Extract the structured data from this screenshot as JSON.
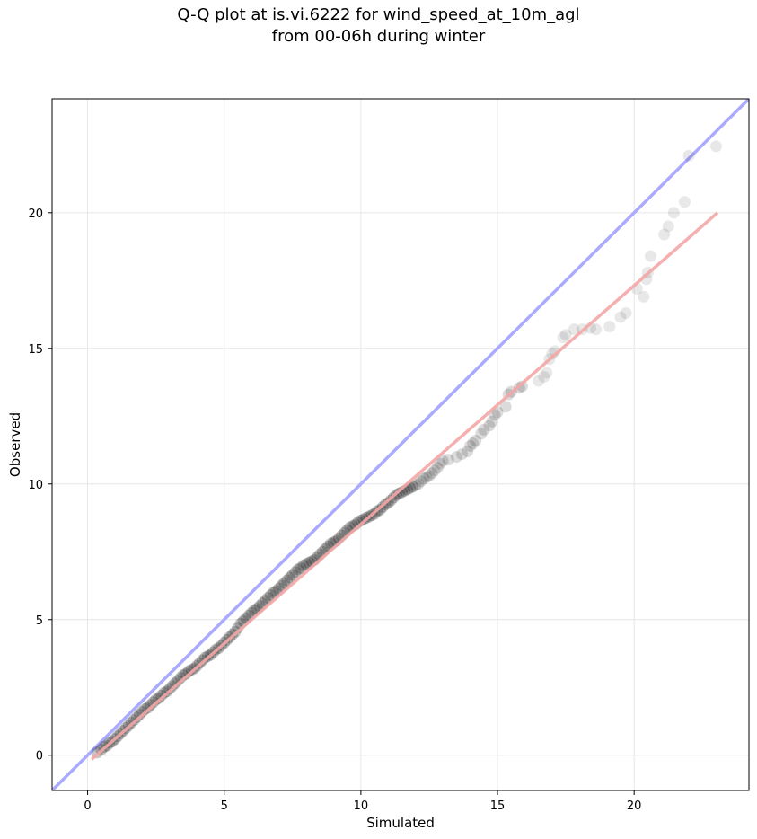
{
  "chart_data": {
    "type": "scatter",
    "title_lines": [
      "Q-Q plot at is.vi.6222 for wind_speed_at_10m_agl",
      "from 00-06h during winter"
    ],
    "xlabel": "Simulated",
    "ylabel": "Observed",
    "xlim": [
      -1.3,
      24.2
    ],
    "ylim": [
      -1.3,
      24.2
    ],
    "xticks": [
      0,
      5,
      10,
      15,
      20
    ],
    "yticks": [
      0,
      5,
      10,
      15,
      20
    ],
    "grid": true,
    "identity_line": {
      "color": "#aaaaff",
      "from": [
        -1.3,
        -1.3
      ],
      "to": [
        24.2,
        24.2
      ]
    },
    "fit_line": {
      "color": "#f4a6a6",
      "from": [
        0.15,
        -0.15
      ],
      "to": [
        23.05,
        20.0
      ]
    },
    "point_color": "#000000",
    "points": [
      [
        0.35,
        0.1
      ],
      [
        0.5,
        0.2
      ],
      [
        0.6,
        0.3
      ],
      [
        0.7,
        0.35
      ],
      [
        0.8,
        0.45
      ],
      [
        0.9,
        0.5
      ],
      [
        1.0,
        0.6
      ],
      [
        1.1,
        0.7
      ],
      [
        1.2,
        0.8
      ],
      [
        1.3,
        0.9
      ],
      [
        1.4,
        1.0
      ],
      [
        1.5,
        1.1
      ],
      [
        1.6,
        1.2
      ],
      [
        1.7,
        1.3
      ],
      [
        1.8,
        1.4
      ],
      [
        1.9,
        1.5
      ],
      [
        2.0,
        1.6
      ],
      [
        2.1,
        1.7
      ],
      [
        2.2,
        1.75
      ],
      [
        2.3,
        1.85
      ],
      [
        2.4,
        1.95
      ],
      [
        2.5,
        2.05
      ],
      [
        2.6,
        2.1
      ],
      [
        2.7,
        2.2
      ],
      [
        2.8,
        2.3
      ],
      [
        2.9,
        2.35
      ],
      [
        3.0,
        2.45
      ],
      [
        3.1,
        2.55
      ],
      [
        3.2,
        2.65
      ],
      [
        3.3,
        2.75
      ],
      [
        3.4,
        2.85
      ],
      [
        3.5,
        2.95
      ],
      [
        3.6,
        3.0
      ],
      [
        3.7,
        3.1
      ],
      [
        3.8,
        3.15
      ],
      [
        3.9,
        3.2
      ],
      [
        4.0,
        3.3
      ],
      [
        4.1,
        3.4
      ],
      [
        4.2,
        3.5
      ],
      [
        4.3,
        3.6
      ],
      [
        4.4,
        3.65
      ],
      [
        4.5,
        3.7
      ],
      [
        4.6,
        3.8
      ],
      [
        4.7,
        3.9
      ],
      [
        4.8,
        3.95
      ],
      [
        4.9,
        4.05
      ],
      [
        5.0,
        4.15
      ],
      [
        5.1,
        4.25
      ],
      [
        5.2,
        4.35
      ],
      [
        5.3,
        4.45
      ],
      [
        5.4,
        4.55
      ],
      [
        5.5,
        4.7
      ],
      [
        5.6,
        4.85
      ],
      [
        5.7,
        4.95
      ],
      [
        5.8,
        5.05
      ],
      [
        5.9,
        5.15
      ],
      [
        6.0,
        5.25
      ],
      [
        6.1,
        5.35
      ],
      [
        6.2,
        5.4
      ],
      [
        6.3,
        5.5
      ],
      [
        6.4,
        5.6
      ],
      [
        6.5,
        5.7
      ],
      [
        6.6,
        5.8
      ],
      [
        6.7,
        5.9
      ],
      [
        6.8,
        6.0
      ],
      [
        6.9,
        6.05
      ],
      [
        7.0,
        6.15
      ],
      [
        7.1,
        6.25
      ],
      [
        7.2,
        6.35
      ],
      [
        7.3,
        6.45
      ],
      [
        7.4,
        6.55
      ],
      [
        7.5,
        6.65
      ],
      [
        7.6,
        6.75
      ],
      [
        7.7,
        6.85
      ],
      [
        7.8,
        6.9
      ],
      [
        7.9,
        7.0
      ],
      [
        8.0,
        7.05
      ],
      [
        8.1,
        7.1
      ],
      [
        8.2,
        7.15
      ],
      [
        8.3,
        7.2
      ],
      [
        8.4,
        7.3
      ],
      [
        8.5,
        7.4
      ],
      [
        8.6,
        7.5
      ],
      [
        8.7,
        7.6
      ],
      [
        8.8,
        7.7
      ],
      [
        8.9,
        7.8
      ],
      [
        9.0,
        7.85
      ],
      [
        9.1,
        7.9
      ],
      [
        9.2,
        8.0
      ],
      [
        9.3,
        8.1
      ],
      [
        9.4,
        8.2
      ],
      [
        9.5,
        8.3
      ],
      [
        9.6,
        8.4
      ],
      [
        9.7,
        8.45
      ],
      [
        9.8,
        8.5
      ],
      [
        9.9,
        8.6
      ],
      [
        10.0,
        8.65
      ],
      [
        10.1,
        8.7
      ],
      [
        10.2,
        8.75
      ],
      [
        10.3,
        8.8
      ],
      [
        10.4,
        8.85
      ],
      [
        10.5,
        8.9
      ],
      [
        10.6,
        9.0
      ],
      [
        10.7,
        9.05
      ],
      [
        10.8,
        9.15
      ],
      [
        10.9,
        9.25
      ],
      [
        11.0,
        9.3
      ],
      [
        11.1,
        9.4
      ],
      [
        11.2,
        9.5
      ],
      [
        11.3,
        9.6
      ],
      [
        11.4,
        9.65
      ],
      [
        11.5,
        9.7
      ],
      [
        11.6,
        9.75
      ],
      [
        11.7,
        9.8
      ],
      [
        11.8,
        9.85
      ],
      [
        11.9,
        9.9
      ],
      [
        12.0,
        9.95
      ],
      [
        12.1,
        10.0
      ],
      [
        12.2,
        10.1
      ],
      [
        12.3,
        10.2
      ],
      [
        12.4,
        10.25
      ],
      [
        12.5,
        10.3
      ],
      [
        12.6,
        10.4
      ],
      [
        12.7,
        10.5
      ],
      [
        12.8,
        10.6
      ],
      [
        12.9,
        10.75
      ],
      [
        13.0,
        10.85
      ],
      [
        13.2,
        10.9
      ],
      [
        13.5,
        11.0
      ],
      [
        13.7,
        11.1
      ],
      [
        13.9,
        11.2
      ],
      [
        14.0,
        11.4
      ],
      [
        14.1,
        11.5
      ],
      [
        14.2,
        11.6
      ],
      [
        14.4,
        11.85
      ],
      [
        14.5,
        12.0
      ],
      [
        14.7,
        12.15
      ],
      [
        14.8,
        12.3
      ],
      [
        14.9,
        12.55
      ],
      [
        15.0,
        12.65
      ],
      [
        15.3,
        12.85
      ],
      [
        15.4,
        13.3
      ],
      [
        15.5,
        13.4
      ],
      [
        15.8,
        13.55
      ],
      [
        15.9,
        13.6
      ],
      [
        16.5,
        13.8
      ],
      [
        16.7,
        13.95
      ],
      [
        16.8,
        14.1
      ],
      [
        16.9,
        14.6
      ],
      [
        17.0,
        14.8
      ],
      [
        17.1,
        14.9
      ],
      [
        17.4,
        15.4
      ],
      [
        17.5,
        15.5
      ],
      [
        17.8,
        15.7
      ],
      [
        18.1,
        15.7
      ],
      [
        18.4,
        15.75
      ],
      [
        18.6,
        15.7
      ],
      [
        19.1,
        15.8
      ],
      [
        19.5,
        16.15
      ],
      [
        19.7,
        16.3
      ],
      [
        20.1,
        17.2
      ],
      [
        20.35,
        16.9
      ],
      [
        20.45,
        17.55
      ],
      [
        20.5,
        17.8
      ],
      [
        20.6,
        18.4
      ],
      [
        21.1,
        19.2
      ],
      [
        21.25,
        19.5
      ],
      [
        21.45,
        20.0
      ],
      [
        21.85,
        20.4
      ],
      [
        22.0,
        22.1
      ],
      [
        23.0,
        22.45
      ]
    ]
  }
}
